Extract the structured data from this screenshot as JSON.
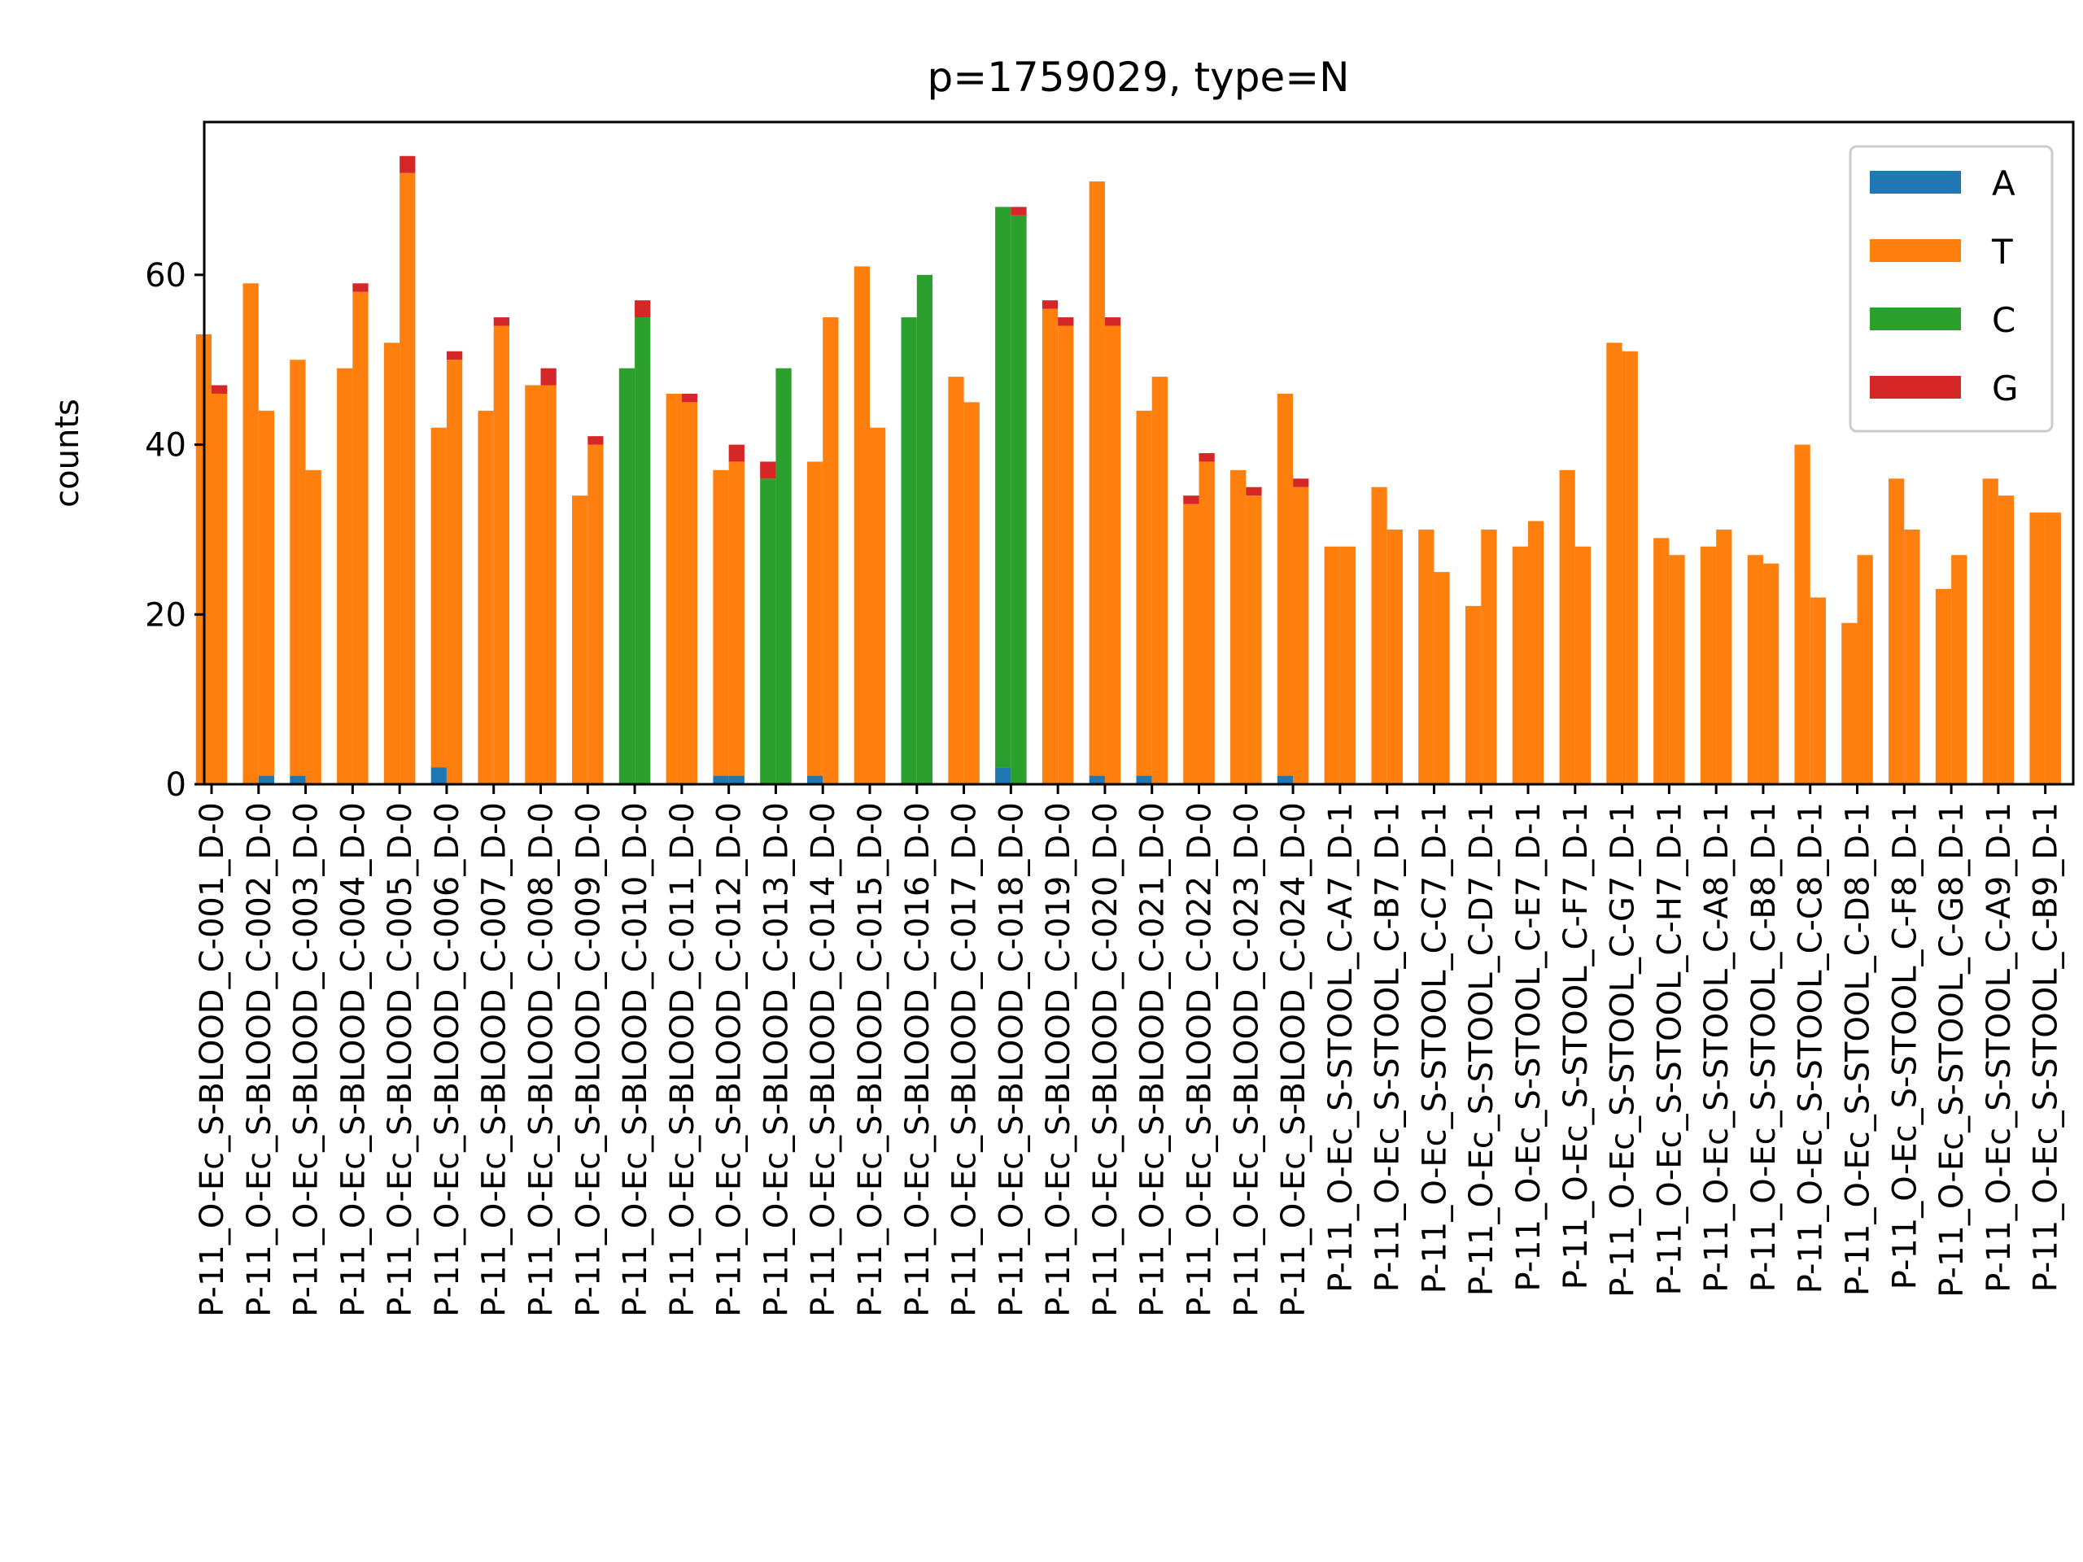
{
  "chart_data": {
    "type": "bar",
    "title": "p=1759029, type=N",
    "xlabel": "",
    "ylabel": "counts",
    "ylim": [
      0,
      78
    ],
    "yticks": [
      0,
      20,
      40,
      60
    ],
    "legend": {
      "placement": "top-right",
      "entries": [
        "A",
        "T",
        "C",
        "G"
      ]
    },
    "grid": false,
    "colors": {
      "A": "#1f77b4",
      "T": "#ff7f0e",
      "C": "#2ca02c",
      "G": "#d62728"
    },
    "categories": [
      "P-11_O-Ec_S-BLOOD_C-001_D-0",
      "P-11_O-Ec_S-BLOOD_C-002_D-0",
      "P-11_O-Ec_S-BLOOD_C-003_D-0",
      "P-11_O-Ec_S-BLOOD_C-004_D-0",
      "P-11_O-Ec_S-BLOOD_C-005_D-0",
      "P-11_O-Ec_S-BLOOD_C-006_D-0",
      "P-11_O-Ec_S-BLOOD_C-007_D-0",
      "P-11_O-Ec_S-BLOOD_C-008_D-0",
      "P-11_O-Ec_S-BLOOD_C-009_D-0",
      "P-11_O-Ec_S-BLOOD_C-010_D-0",
      "P-11_O-Ec_S-BLOOD_C-011_D-0",
      "P-11_O-Ec_S-BLOOD_C-012_D-0",
      "P-11_O-Ec_S-BLOOD_C-013_D-0",
      "P-11_O-Ec_S-BLOOD_C-014_D-0",
      "P-11_O-Ec_S-BLOOD_C-015_D-0",
      "P-11_O-Ec_S-BLOOD_C-016_D-0",
      "P-11_O-Ec_S-BLOOD_C-017_D-0",
      "P-11_O-Ec_S-BLOOD_C-018_D-0",
      "P-11_O-Ec_S-BLOOD_C-019_D-0",
      "P-11_O-Ec_S-BLOOD_C-020_D-0",
      "P-11_O-Ec_S-BLOOD_C-021_D-0",
      "P-11_O-Ec_S-BLOOD_C-022_D-0",
      "P-11_O-Ec_S-BLOOD_C-023_D-0",
      "P-11_O-Ec_S-BLOOD_C-024_D-0",
      "P-11_O-Ec_S-STOOL_C-A7_D-1",
      "P-11_O-Ec_S-STOOL_C-B7_D-1",
      "P-11_O-Ec_S-STOOL_C-C7_D-1",
      "P-11_O-Ec_S-STOOL_C-D7_D-1",
      "P-11_O-Ec_S-STOOL_C-E7_D-1",
      "P-11_O-Ec_S-STOOL_C-F7_D-1",
      "P-11_O-Ec_S-STOOL_C-G7_D-1",
      "P-11_O-Ec_S-STOOL_C-H7_D-1",
      "P-11_O-Ec_S-STOOL_C-A8_D-1",
      "P-11_O-Ec_S-STOOL_C-B8_D-1",
      "P-11_O-Ec_S-STOOL_C-C8_D-1",
      "P-11_O-Ec_S-STOOL_C-D8_D-1",
      "P-11_O-Ec_S-STOOL_C-F8_D-1",
      "P-11_O-Ec_S-STOOL_C-G8_D-1",
      "P-11_O-Ec_S-STOOL_C-A9_D-1",
      "P-11_O-Ec_S-STOOL_C-B9_D-1"
    ],
    "series": [
      {
        "name": "A",
        "values": [
          [
            0,
            0
          ],
          [
            0,
            1
          ],
          [
            1,
            0
          ],
          [
            0,
            0
          ],
          [
            0,
            0
          ],
          [
            2,
            0
          ],
          [
            0,
            0
          ],
          [
            0,
            0
          ],
          [
            0,
            0
          ],
          [
            0,
            0
          ],
          [
            0,
            0
          ],
          [
            1,
            1
          ],
          [
            0,
            0
          ],
          [
            1,
            0
          ],
          [
            0,
            0
          ],
          [
            0,
            0
          ],
          [
            0,
            0
          ],
          [
            2,
            0
          ],
          [
            0,
            0
          ],
          [
            1,
            0
          ],
          [
            1,
            0
          ],
          [
            0,
            0
          ],
          [
            0,
            0
          ],
          [
            1,
            0
          ],
          [
            0,
            0
          ],
          [
            0,
            0
          ],
          [
            0,
            0
          ],
          [
            0,
            0
          ],
          [
            0,
            0
          ],
          [
            0,
            0
          ],
          [
            0,
            0
          ],
          [
            0,
            0
          ],
          [
            0,
            0
          ],
          [
            0,
            0
          ],
          [
            0,
            0
          ],
          [
            0,
            0
          ],
          [
            0,
            0
          ],
          [
            0,
            0
          ],
          [
            0,
            0
          ],
          [
            0,
            0
          ]
        ]
      },
      {
        "name": "T",
        "values": [
          [
            53,
            46
          ],
          [
            59,
            43
          ],
          [
            49,
            37
          ],
          [
            49,
            58
          ],
          [
            52,
            72
          ],
          [
            40,
            50
          ],
          [
            44,
            54
          ],
          [
            47,
            47
          ],
          [
            34,
            40
          ],
          [
            0,
            0
          ],
          [
            46,
            45
          ],
          [
            36,
            37
          ],
          [
            0,
            0
          ],
          [
            37,
            55
          ],
          [
            61,
            42
          ],
          [
            0,
            0
          ],
          [
            48,
            45
          ],
          [
            0,
            0
          ],
          [
            56,
            54
          ],
          [
            70,
            54
          ],
          [
            43,
            48
          ],
          [
            33,
            38
          ],
          [
            37,
            34
          ],
          [
            45,
            35
          ],
          [
            28,
            28
          ],
          [
            35,
            30
          ],
          [
            30,
            25
          ],
          [
            21,
            30
          ],
          [
            28,
            31
          ],
          [
            37,
            28
          ],
          [
            52,
            51
          ],
          [
            29,
            27
          ],
          [
            28,
            30
          ],
          [
            27,
            26
          ],
          [
            40,
            22
          ],
          [
            19,
            27
          ],
          [
            36,
            30
          ],
          [
            23,
            27
          ],
          [
            36,
            34
          ],
          [
            32,
            32
          ]
        ]
      },
      {
        "name": "C",
        "values": [
          [
            0,
            0
          ],
          [
            0,
            0
          ],
          [
            0,
            0
          ],
          [
            0,
            0
          ],
          [
            0,
            0
          ],
          [
            0,
            0
          ],
          [
            0,
            0
          ],
          [
            0,
            0
          ],
          [
            0,
            0
          ],
          [
            49,
            55
          ],
          [
            0,
            0
          ],
          [
            0,
            0
          ],
          [
            36,
            49
          ],
          [
            0,
            0
          ],
          [
            0,
            0
          ],
          [
            55,
            60
          ],
          [
            0,
            0
          ],
          [
            66,
            67
          ],
          [
            0,
            0
          ],
          [
            0,
            0
          ],
          [
            0,
            0
          ],
          [
            0,
            0
          ],
          [
            0,
            0
          ],
          [
            0,
            0
          ],
          [
            0,
            0
          ],
          [
            0,
            0
          ],
          [
            0,
            0
          ],
          [
            0,
            0
          ],
          [
            0,
            0
          ],
          [
            0,
            0
          ],
          [
            0,
            0
          ],
          [
            0,
            0
          ],
          [
            0,
            0
          ],
          [
            0,
            0
          ],
          [
            0,
            0
          ],
          [
            0,
            0
          ],
          [
            0,
            0
          ],
          [
            0,
            0
          ],
          [
            0,
            0
          ],
          [
            0,
            0
          ]
        ]
      },
      {
        "name": "G",
        "values": [
          [
            0,
            1
          ],
          [
            0,
            0
          ],
          [
            0,
            0
          ],
          [
            0,
            1
          ],
          [
            0,
            2
          ],
          [
            0,
            1
          ],
          [
            0,
            1
          ],
          [
            0,
            2
          ],
          [
            0,
            1
          ],
          [
            0,
            2
          ],
          [
            0,
            1
          ],
          [
            0,
            2
          ],
          [
            2,
            0
          ],
          [
            0,
            0
          ],
          [
            0,
            0
          ],
          [
            0,
            0
          ],
          [
            0,
            0
          ],
          [
            0,
            1
          ],
          [
            1,
            1
          ],
          [
            0,
            1
          ],
          [
            0,
            0
          ],
          [
            1,
            1
          ],
          [
            0,
            1
          ],
          [
            0,
            1
          ],
          [
            0,
            0
          ],
          [
            0,
            0
          ],
          [
            0,
            0
          ],
          [
            0,
            0
          ],
          [
            0,
            0
          ],
          [
            0,
            0
          ],
          [
            0,
            0
          ],
          [
            0,
            0
          ],
          [
            0,
            0
          ],
          [
            0,
            0
          ],
          [
            0,
            0
          ],
          [
            0,
            0
          ],
          [
            0,
            0
          ],
          [
            0,
            0
          ],
          [
            0,
            0
          ],
          [
            0,
            0
          ]
        ]
      }
    ]
  }
}
